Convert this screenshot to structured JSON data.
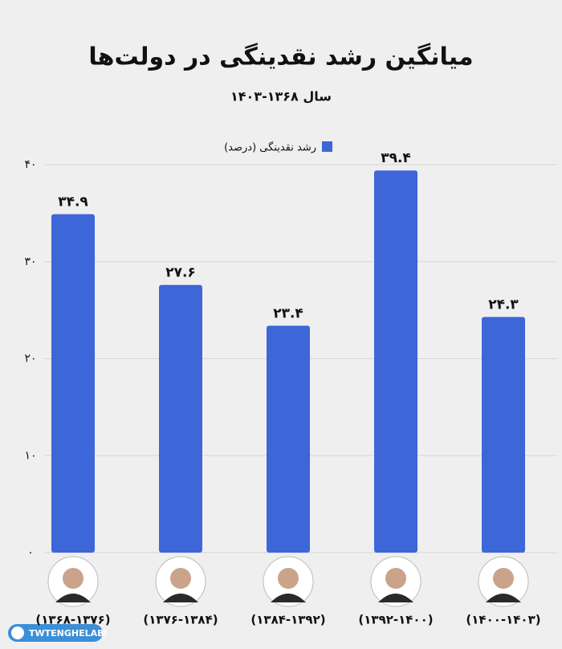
{
  "chart_data": {
    "type": "bar",
    "title": "میانگین رشد نقدینگی در دولت‌ها",
    "subtitle": "سال ۱۳۶۸-۱۴۰۳",
    "categories": [
      "(۱۳۶۸-۱۳۷۶)",
      "(۱۳۷۶-۱۳۸۴)",
      "(۱۳۸۴-۱۳۹۲)",
      "(۱۳۹۲-۱۴۰۰)",
      "(۱۴۰۰-۱۴۰۳)"
    ],
    "series": [
      {
        "name": "رشد نقدینگی (درصد)",
        "color": "#3d66d8",
        "values": [
          34.9,
          27.6,
          23.4,
          39.4,
          24.3
        ],
        "value_labels": [
          "۳۴.۹",
          "۲۷.۶",
          "۲۳.۴",
          "۳۹.۴",
          "۲۴.۳"
        ]
      }
    ],
    "ylim": [
      0,
      40
    ],
    "yticks": [
      {
        "value": 0,
        "label": "۰"
      },
      {
        "value": 10,
        "label": "۱۰"
      },
      {
        "value": 20,
        "label": "۲۰"
      },
      {
        "value": 30,
        "label": "۳۰"
      },
      {
        "value": 40,
        "label": "۴۰"
      }
    ],
    "grid": true,
    "watermark": "TWTENGHELABI"
  }
}
